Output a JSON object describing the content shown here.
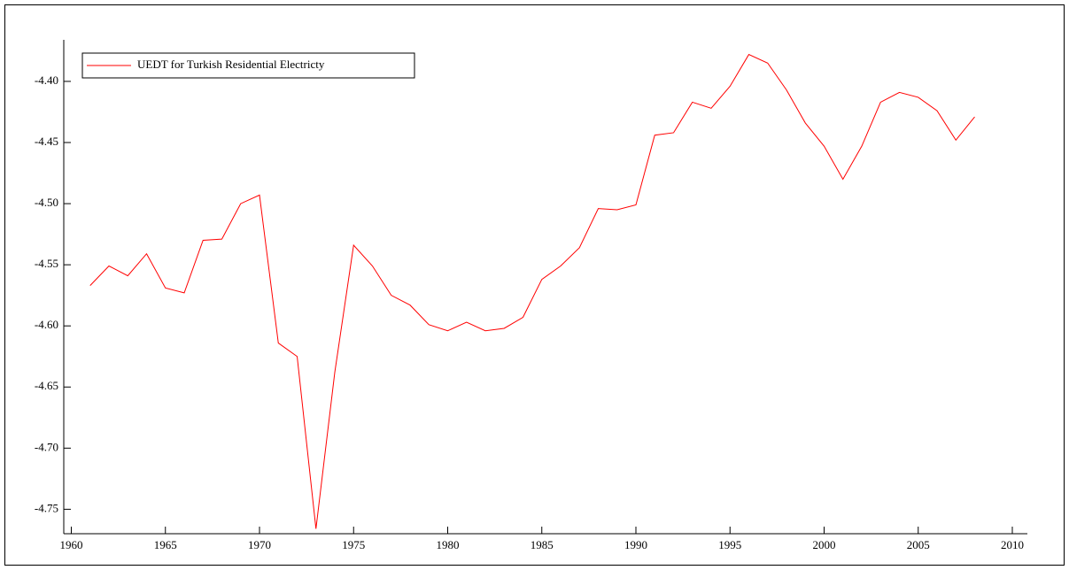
{
  "chart_data": {
    "type": "line",
    "x": [
      1961,
      1962,
      1963,
      1964,
      1965,
      1966,
      1967,
      1968,
      1969,
      1970,
      1971,
      1972,
      1973,
      1974,
      1975,
      1976,
      1977,
      1978,
      1979,
      1980,
      1981,
      1982,
      1983,
      1984,
      1985,
      1986,
      1987,
      1988,
      1989,
      1990,
      1991,
      1992,
      1993,
      1994,
      1995,
      1996,
      1997,
      1998,
      1999,
      2000,
      2001,
      2002,
      2003,
      2004,
      2005,
      2006,
      2007,
      2008
    ],
    "series": [
      {
        "name": "UEDT for Turkish Residential Electricty",
        "color": "#ff0000",
        "values": [
          -4.567,
          -4.551,
          -4.559,
          -4.541,
          -4.569,
          -4.573,
          -4.53,
          -4.529,
          -4.5,
          -4.493,
          -4.614,
          -4.625,
          -4.766,
          -4.638,
          -4.534,
          -4.551,
          -4.575,
          -4.583,
          -4.599,
          -4.604,
          -4.597,
          -4.604,
          -4.602,
          -4.593,
          -4.562,
          -4.551,
          -4.536,
          -4.504,
          -4.505,
          -4.501,
          -4.444,
          -4.442,
          -4.417,
          -4.422,
          -4.404,
          -4.378,
          -4.385,
          -4.407,
          -4.434,
          -4.453,
          -4.48,
          -4.453,
          -4.417,
          -4.409,
          -4.413,
          -4.424,
          -4.448,
          -4.429
        ]
      }
    ],
    "xlim": [
      1959.6,
      2010.8
    ],
    "xticks": [
      1960,
      1965,
      1970,
      1975,
      1980,
      1985,
      1990,
      1995,
      2000,
      2005,
      2010
    ],
    "ylim": [
      -4.77,
      -4.366
    ],
    "yticks": [
      {
        "value": -4.4,
        "label": "-4.40"
      },
      {
        "value": -4.45,
        "label": "-4.45"
      },
      {
        "value": -4.5,
        "label": "-4.50"
      },
      {
        "value": -4.55,
        "label": "-4.55"
      },
      {
        "value": -4.6,
        "label": "-4.60"
      },
      {
        "value": -4.65,
        "label": "-4.65"
      },
      {
        "value": -4.7,
        "label": "-4.70"
      },
      {
        "value": -4.75,
        "label": "-4.75"
      }
    ],
    "legend": "top-left"
  }
}
